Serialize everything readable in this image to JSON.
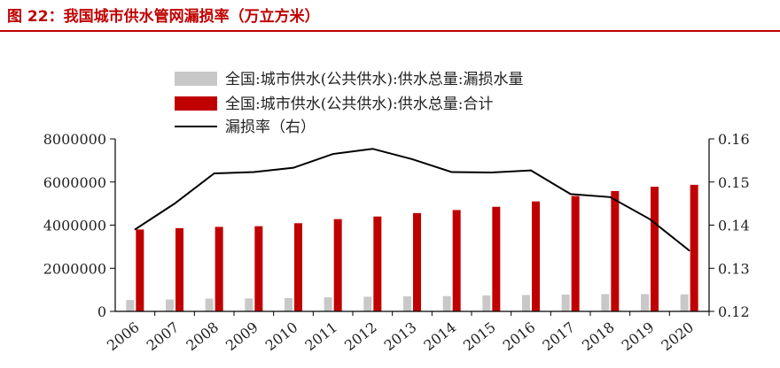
{
  "figure": {
    "title": "图 22：我国城市供水管网漏损率（万立方米）"
  },
  "colors": {
    "title_red": "#c00000",
    "bar_gray": "#c8c8c8",
    "bar_red": "#c00000",
    "line": "#000000"
  },
  "chart_data": {
    "type": "bar",
    "categories": [
      "2006",
      "2007",
      "2008",
      "2009",
      "2010",
      "2011",
      "2012",
      "2013",
      "2014",
      "2015",
      "2016",
      "2017",
      "2018",
      "2019",
      "2020"
    ],
    "series": [
      {
        "name": "全国:城市供水(公共供水):供水总量:漏损水量",
        "type": "bar",
        "axis": "left",
        "values": [
          530000,
          550000,
          590000,
          600000,
          620000,
          650000,
          680000,
          700000,
          710000,
          740000,
          760000,
          780000,
          800000,
          800000,
          790000
        ]
      },
      {
        "name": "全国:城市供水(公共供水):供水总量:合计",
        "type": "bar",
        "axis": "left",
        "values": [
          3800000,
          3860000,
          3920000,
          3950000,
          4090000,
          4280000,
          4400000,
          4560000,
          4700000,
          4850000,
          5100000,
          5350000,
          5580000,
          5780000,
          5870000
        ]
      },
      {
        "name": "漏损率（右）",
        "type": "line",
        "axis": "right",
        "values": [
          0.139,
          0.145,
          0.152,
          0.1523,
          0.1533,
          0.1565,
          0.1577,
          0.1553,
          0.1523,
          0.1522,
          0.1527,
          0.1472,
          0.1465,
          0.1414,
          0.1341
        ]
      }
    ],
    "y_left": {
      "min": 0,
      "max": 8000000,
      "ticks": [
        "0",
        "2000000",
        "4000000",
        "6000000",
        "8000000"
      ]
    },
    "y_right": {
      "min": 0.12,
      "max": 0.16,
      "ticks": [
        "0.12",
        "0.13",
        "0.14",
        "0.15",
        "0.16"
      ]
    },
    "legend_position": "top"
  }
}
